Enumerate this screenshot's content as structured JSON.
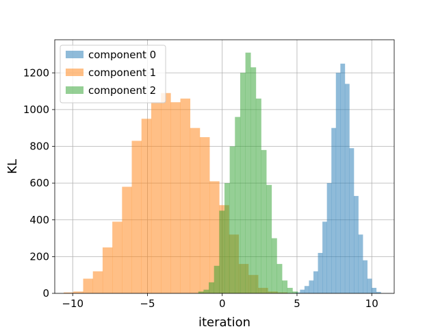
{
  "chart_data": {
    "type": "histogram",
    "title": "",
    "xlabel": "iteration",
    "ylabel": "KL",
    "xlim": [
      -11.2,
      11.5
    ],
    "ylim": [
      0,
      1380
    ],
    "xticks": [
      -10,
      -5,
      0,
      5,
      10
    ],
    "xtick_labels": [
      "−10",
      "−5",
      "0",
      "5",
      "10"
    ],
    "yticks": [
      0,
      200,
      400,
      600,
      800,
      1000,
      1200
    ],
    "ytick_labels": [
      "0",
      "200",
      "400",
      "600",
      "800",
      "1000",
      "1200"
    ],
    "grid": true,
    "legend_position": "top-left",
    "series": [
      {
        "name": "component 0",
        "color": "#1f77b4",
        "alpha": 0.5,
        "bin_edges": [
          4.9,
          5.2,
          5.5,
          5.8,
          6.1,
          6.4,
          6.7,
          7.0,
          7.3,
          7.6,
          7.9,
          8.2,
          8.5,
          8.8,
          9.1,
          9.4,
          9.7,
          10.0,
          10.3,
          10.6
        ],
        "counts": [
          5,
          20,
          40,
          70,
          120,
          220,
          390,
          600,
          900,
          1200,
          1250,
          1140,
          790,
          530,
          320,
          180,
          80,
          30,
          8
        ]
      },
      {
        "name": "component 1",
        "color": "#ff7f0e",
        "alpha": 0.5,
        "bin_edges": [
          -10.6,
          -9.95,
          -9.3,
          -8.65,
          -8.0,
          -7.35,
          -6.7,
          -6.05,
          -5.4,
          -4.75,
          -4.1,
          -3.45,
          -2.8,
          -2.15,
          -1.5,
          -0.85,
          -0.2,
          0.45,
          1.1,
          1.75,
          2.4,
          3.05,
          3.7,
          4.35
        ],
        "counts": [
          5,
          10,
          80,
          120,
          250,
          390,
          580,
          830,
          950,
          1040,
          1090,
          1040,
          1060,
          900,
          850,
          610,
          480,
          320,
          160,
          100,
          30,
          10,
          5
        ]
      },
      {
        "name": "component 2",
        "color": "#2ca02c",
        "alpha": 0.5,
        "bin_edges": [
          -1.6,
          -1.25,
          -0.9,
          -0.55,
          -0.2,
          0.15,
          0.5,
          0.85,
          1.2,
          1.55,
          1.9,
          2.25,
          2.6,
          2.95,
          3.3,
          3.65,
          4.0,
          4.35,
          4.7,
          5.05
        ],
        "counts": [
          10,
          20,
          60,
          150,
          450,
          600,
          800,
          960,
          1200,
          1310,
          1230,
          1060,
          780,
          590,
          300,
          160,
          70,
          30,
          10
        ]
      }
    ]
  }
}
